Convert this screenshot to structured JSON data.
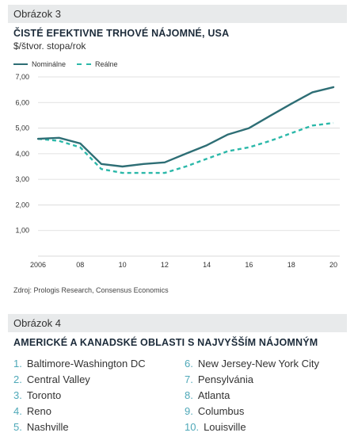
{
  "figure3": {
    "label": "Obrázok 3",
    "title": "ČISTÉ EFEKTIVNE TRHOVÉ NÁJOMNÉ, USA",
    "subtitle": "$/štvor. stopa/rok",
    "source": "Zdroj: Prologis Research, Consensus Economics"
  },
  "chart_data": {
    "type": "line",
    "title": "ČISTÉ EFEKTIVNE TRHOVÉ NÁJOMNÉ, USA",
    "ylabel": "$/štvor. stopa/rok",
    "xlabel": "",
    "x": [
      2006,
      2007,
      2008,
      2009,
      2010,
      2011,
      2012,
      2013,
      2014,
      2015,
      2016,
      2017,
      2018,
      2019,
      2020
    ],
    "x_tick_values": [
      2006,
      2008,
      2010,
      2012,
      2014,
      2016,
      2018,
      2020
    ],
    "x_tick_labels": [
      "2006",
      "08",
      "10",
      "12",
      "14",
      "16",
      "18",
      "20"
    ],
    "y_tick_values": [
      1,
      2,
      3,
      4,
      5,
      6,
      7
    ],
    "y_tick_labels": [
      "1,00",
      "2,00",
      "3,00",
      "4,00",
      "5,00",
      "6,00",
      "7,00"
    ],
    "xlim": [
      2006,
      2020
    ],
    "ylim": [
      0,
      7
    ],
    "grid": "horizontal",
    "legend_position": "top-left",
    "series": [
      {
        "name": "Nominálne",
        "style": "solid",
        "color": "#2e6e75",
        "values": [
          4.58,
          4.62,
          4.4,
          3.6,
          3.5,
          3.6,
          3.66,
          4.0,
          4.33,
          4.75,
          5.0,
          5.48,
          5.95,
          6.4,
          6.6
        ]
      },
      {
        "name": "Reálne",
        "style": "dashed",
        "color": "#2bb8a9",
        "values": [
          4.58,
          4.5,
          4.25,
          3.4,
          3.25,
          3.25,
          3.25,
          3.5,
          3.8,
          4.1,
          4.25,
          4.5,
          4.8,
          5.1,
          5.2
        ]
      }
    ]
  },
  "figure4": {
    "label": "Obrázok 4",
    "title": "AMERICKÉ A KANADSKÉ OBLASTI S NAJVYŠŠÍM NÁJOMNÝM",
    "items": [
      {
        "num": "1.",
        "name": "Baltimore-Washington DC"
      },
      {
        "num": "2.",
        "name": "Central Valley"
      },
      {
        "num": "3.",
        "name": "Toronto"
      },
      {
        "num": "4.",
        "name": "Reno"
      },
      {
        "num": "5.",
        "name": "Nashville"
      },
      {
        "num": "6.",
        "name": "New Jersey-New York City"
      },
      {
        "num": "7.",
        "name": "Pensylvánia"
      },
      {
        "num": "8.",
        "name": "Atlanta"
      },
      {
        "num": "9.",
        "name": "Columbus"
      },
      {
        "num": "10.",
        "name": "Louisville"
      }
    ]
  }
}
